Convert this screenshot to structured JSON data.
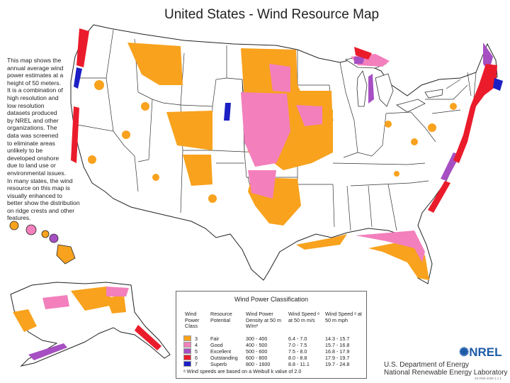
{
  "title": "United States - Wind Resource Map",
  "description_lines": [
    "This map shows the",
    "annual average wind",
    "power estimates at a",
    "height of 50 meters.",
    "It is a combination of",
    "high resolution and",
    "low resolution",
    "datasets produced",
    "by NREL and other",
    "organizations.  The",
    "data was screened",
    "to eliminate areas",
    "unlikely to be",
    "developed onshore",
    "due to land use or",
    "environmental  issues.",
    "In many states, the wind",
    "resource on this map is",
    "visually enhanced to",
    "better show the distribution",
    "on ridge crests and other",
    "features."
  ],
  "legend": {
    "title": "Wind Power Classification",
    "headers": {
      "class": "Wind Power Class",
      "potential": "Resource Potential",
      "density": "Wind Power Density at 50 m W/m²",
      "speed_ms": "Wind Speed ᵃ at 50 m m/s",
      "speed_mph": "Wind Speed ᵃ at 50 m mph"
    },
    "rows": [
      {
        "class": "3",
        "potential": "Fair",
        "density": "300 - 400",
        "speed_ms": "6.4 - 7.0",
        "speed_mph": "14.3 - 15.7",
        "color": "#f8a21e"
      },
      {
        "class": "4",
        "potential": "Good",
        "density": "400 - 500",
        "speed_ms": "7.0 - 7.5",
        "speed_mph": "15.7 - 16.8",
        "color": "#f37fbc"
      },
      {
        "class": "5",
        "potential": "Excellent",
        "density": "500 - 600",
        "speed_ms": "7.5 - 8.0",
        "speed_mph": "16.8 - 17.9",
        "color": "#a64fc2"
      },
      {
        "class": "6",
        "potential": "Outstanding",
        "density": "600 - 800",
        "speed_ms": "8.0 - 8.8",
        "speed_mph": "17.9 - 19.7",
        "color": "#ea1c2b"
      },
      {
        "class": "7",
        "potential": "Superb",
        "density": "800 - 1600",
        "speed_ms": "8.8 - 11.1",
        "speed_mph": "19.7 - 24.8",
        "color": "#1b1fc4"
      }
    ],
    "footnote": "ᵃ Wind speeds are based on a Weibull k value of 2.0"
  },
  "logo_text": "NREL",
  "agency_lines": [
    "U.S. Department of Energy",
    "National Renewable Energy Laboratory"
  ],
  "map_code": "25-FEB-2009 1.1.1",
  "colors": {
    "land": "#ffffff",
    "border": "#333333",
    "fair": "#f8a21e",
    "good": "#f37fbc",
    "excellent": "#a64fc2",
    "outstanding": "#ea1c2b",
    "superb": "#1b1fc4"
  }
}
